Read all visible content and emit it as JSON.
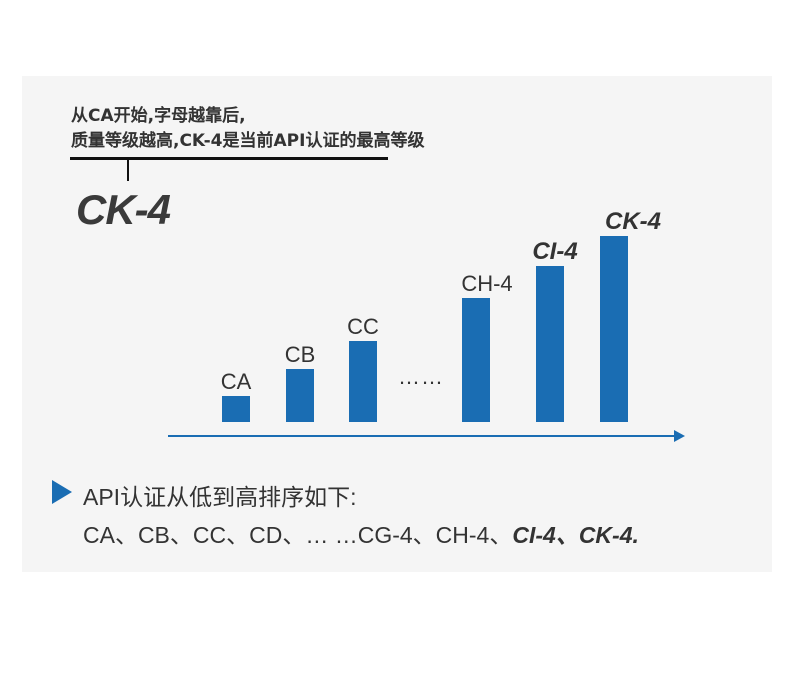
{
  "note": {
    "line1": "从CA开始,字母越靠后,",
    "line2": "质量等级越高,CK-4是当前API认证的最高等级"
  },
  "highlight": "CK-4",
  "bars": [
    {
      "label": "CA",
      "emphasis": false
    },
    {
      "label": "CB",
      "emphasis": false
    },
    {
      "label": "CC",
      "emphasis": false
    },
    {
      "label": "CH-4",
      "emphasis": false
    },
    {
      "label": "CI-4",
      "emphasis": true
    },
    {
      "label": "CK-4",
      "emphasis": true
    }
  ],
  "ellipsis": "……",
  "accent_color": "#1a6db3",
  "summary": {
    "heading": "API认证从低到高排序如下:",
    "sequence_plain": "CA、CB、CC、CD、… …CG-4、CH-4、",
    "sequence_bold1": "CI-4",
    "sep": "、",
    "sequence_bold2": "CK-4",
    "end": "."
  }
}
